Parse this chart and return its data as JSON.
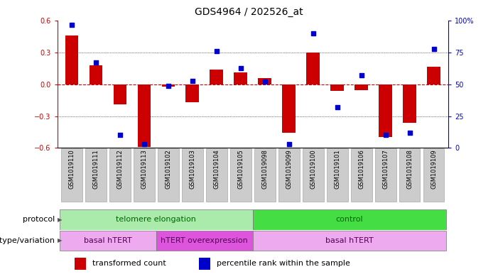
{
  "title": "GDS4964 / 202526_at",
  "samples": [
    "GSM1019110",
    "GSM1019111",
    "GSM1019112",
    "GSM1019113",
    "GSM1019102",
    "GSM1019103",
    "GSM1019104",
    "GSM1019105",
    "GSM1019098",
    "GSM1019099",
    "GSM1019100",
    "GSM1019101",
    "GSM1019106",
    "GSM1019107",
    "GSM1019108",
    "GSM1019109"
  ],
  "bar_values": [
    0.46,
    0.18,
    -0.19,
    -0.59,
    -0.02,
    -0.17,
    0.14,
    0.11,
    0.06,
    -0.46,
    0.3,
    -0.06,
    -0.055,
    -0.5,
    -0.36,
    0.17
  ],
  "dot_values": [
    97,
    67,
    10,
    3,
    49,
    53,
    76,
    63,
    52,
    3,
    90,
    32,
    57,
    10,
    12,
    78
  ],
  "ylim": [
    -0.6,
    0.6
  ],
  "yticks_left": [
    -0.6,
    -0.3,
    0.0,
    0.3,
    0.6
  ],
  "yticks_right": [
    0,
    25,
    50,
    75,
    100
  ],
  "bar_color": "#cc0000",
  "dot_color": "#0000cc",
  "zero_line_color": "#cc0000",
  "grid_line_color": "#000000",
  "protocol_groups": [
    {
      "label": "telomere elongation",
      "start": 0,
      "end": 7,
      "color": "#aaeaaa"
    },
    {
      "label": "control",
      "start": 8,
      "end": 15,
      "color": "#44dd44"
    }
  ],
  "genotype_groups": [
    {
      "label": "basal hTERT",
      "start": 0,
      "end": 3,
      "color": "#eeaaee"
    },
    {
      "label": "hTERT overexpression",
      "start": 4,
      "end": 7,
      "color": "#dd55dd"
    },
    {
      "label": "basal hTERT",
      "start": 8,
      "end": 15,
      "color": "#eeaaee"
    }
  ],
  "protocol_label": "protocol",
  "genotype_label": "genotype/variation",
  "legend_bar": "transformed count",
  "legend_dot": "percentile rank within the sample",
  "bg_color": "#ffffff",
  "plot_bg_color": "#ffffff",
  "tick_label_color_left": "#cc0000",
  "tick_label_color_right": "#0000cc",
  "sample_box_color": "#cccccc",
  "sample_box_edge": "#999999"
}
